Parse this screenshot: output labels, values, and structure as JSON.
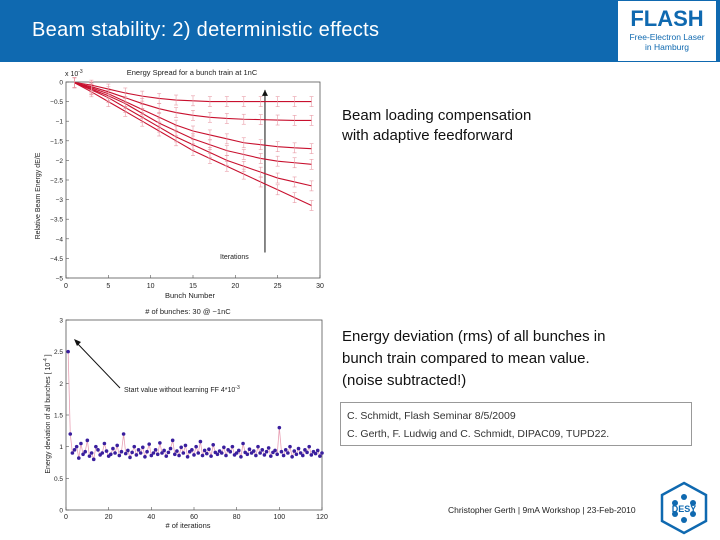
{
  "header": {
    "title": "Beam stability: 2) deterministic effects"
  },
  "logo": {
    "title": "FLASH",
    "subtitle_line1": "Free-Electron Laser",
    "subtitle_line2": "in Hamburg"
  },
  "text_block1": {
    "line1": "Beam loading compensation",
    "line2": "with adaptive feedforward"
  },
  "text_block2": {
    "line1": "Energy deviation (rms) of all bunches in",
    "line2": "bunch train compared to mean value.",
    "line3": "(noise subtracted!)"
  },
  "references": {
    "line1": "C. Schmidt, Flash Seminar 8/5/2009",
    "line2": "C. Gerth, F.  Ludwig and C. Schmidt, DIPAC09, TUPD22."
  },
  "footer": {
    "text": "Christopher Gerth  |  9mA Workshop  |  23-Feb-2010"
  },
  "desy_logo": {
    "text": "DESY"
  },
  "colors": {
    "header_blue": "#0f69b0",
    "curve_red": "#c8102e",
    "point_purple": "#3a1f9e"
  },
  "chart_data": [
    {
      "type": "line",
      "title": "Energy Spread for a bunch train at 1nC",
      "xlabel": "Bunch Number",
      "ylabel": "Relative Beam Energy dE/E",
      "y_multiplier_label": "x 10",
      "y_multiplier_exp": "-3",
      "annotation": "Iterations",
      "xlim": [
        0,
        30
      ],
      "ylim": [
        -5,
        0
      ],
      "x_ticks": [
        "0",
        "5",
        "10",
        "15",
        "20",
        "25",
        "30"
      ],
      "y_ticks": [
        "0",
        "−0.5",
        "−1",
        "−1.5",
        "−2",
        "−2.5",
        "−3",
        "−3.5",
        "−4",
        "−4.5",
        "−5"
      ],
      "x": [
        1,
        3,
        5,
        7,
        9,
        11,
        13,
        15,
        17,
        19,
        21,
        23,
        25,
        27,
        29
      ],
      "series": [
        {
          "values": [
            -0.02,
            -0.25,
            -0.5,
            -0.75,
            -1.0,
            -1.25,
            -1.5,
            -1.75,
            -1.95,
            -2.15,
            -2.35,
            -2.55,
            -2.75,
            -2.95,
            -3.15
          ]
        },
        {
          "values": [
            -0.02,
            -0.2,
            -0.4,
            -0.65,
            -0.9,
            -1.15,
            -1.4,
            -1.6,
            -1.8,
            -2.0,
            -2.15,
            -2.3,
            -2.45,
            -2.55,
            -2.65
          ]
        },
        {
          "values": [
            -0.02,
            -0.18,
            -0.35,
            -0.55,
            -0.8,
            -1.05,
            -1.25,
            -1.45,
            -1.6,
            -1.75,
            -1.85,
            -1.95,
            -2.02,
            -2.06,
            -2.1
          ]
        },
        {
          "values": [
            -0.02,
            -0.15,
            -0.3,
            -0.5,
            -0.7,
            -0.9,
            -1.1,
            -1.25,
            -1.35,
            -1.45,
            -1.55,
            -1.6,
            -1.65,
            -1.68,
            -1.7
          ]
        },
        {
          "values": [
            -0.02,
            -0.12,
            -0.25,
            -0.4,
            -0.55,
            -0.68,
            -0.78,
            -0.85,
            -0.9,
            -0.93,
            -0.95,
            -0.96,
            -0.97,
            -0.98,
            -0.98
          ]
        },
        {
          "values": [
            -0.01,
            -0.08,
            -0.18,
            -0.28,
            -0.36,
            -0.42,
            -0.46,
            -0.48,
            -0.5,
            -0.5,
            -0.5,
            -0.5,
            -0.5,
            -0.5,
            -0.5
          ]
        }
      ]
    },
    {
      "type": "scatter",
      "title": "# of bunches: 30 @ ~1nC",
      "xlabel": "# of iterations",
      "ylabel": "Energy deviation of all bunches [ 10",
      "ylabel_exp": "-4",
      "ylabel_end": " ]",
      "annotation": "Start value without learning FF 4*10",
      "annotation_exp": "-3",
      "xlim": [
        0,
        120
      ],
      "ylim": [
        0,
        3
      ],
      "x_ticks": [
        "0",
        "20",
        "40",
        "60",
        "80",
        "100",
        "120"
      ],
      "y_ticks": [
        "0",
        "0.5",
        "1",
        "1.5",
        "2",
        "2.5",
        "3"
      ],
      "x": [
        1,
        2,
        3,
        4,
        5,
        6,
        7,
        8,
        9,
        10,
        11,
        12,
        13,
        14,
        15,
        16,
        17,
        18,
        19,
        20,
        21,
        22,
        23,
        24,
        25,
        26,
        27,
        28,
        29,
        30,
        31,
        32,
        33,
        34,
        35,
        36,
        37,
        38,
        39,
        40,
        41,
        42,
        43,
        44,
        45,
        46,
        47,
        48,
        49,
        50,
        51,
        52,
        53,
        54,
        55,
        56,
        57,
        58,
        59,
        60,
        61,
        62,
        63,
        64,
        65,
        66,
        67,
        68,
        69,
        70,
        71,
        72,
        73,
        74,
        75,
        76,
        77,
        78,
        79,
        80,
        81,
        82,
        83,
        84,
        85,
        86,
        87,
        88,
        89,
        90,
        91,
        92,
        93,
        94,
        95,
        96,
        97,
        98,
        99,
        100,
        101,
        102,
        103,
        104,
        105,
        106,
        107,
        108,
        109,
        110,
        111,
        112,
        113,
        114,
        115,
        116,
        117,
        118,
        119,
        120
      ],
      "values": [
        2.5,
        1.2,
        0.9,
        0.95,
        1.0,
        0.82,
        1.05,
        0.88,
        0.92,
        1.1,
        0.85,
        0.9,
        0.8,
        1.0,
        0.95,
        0.87,
        0.9,
        1.05,
        0.93,
        0.85,
        0.88,
        0.97,
        0.9,
        1.02,
        0.86,
        0.92,
        1.2,
        0.89,
        0.94,
        0.83,
        0.91,
        1.0,
        0.87,
        0.95,
        0.9,
        0.99,
        0.84,
        0.92,
        1.04,
        0.86,
        0.9,
        0.95,
        0.88,
        1.06,
        0.9,
        0.94,
        0.85,
        0.91,
        0.97,
        1.1,
        0.88,
        0.93,
        0.86,
        0.99,
        0.9,
        1.02,
        0.84,
        0.92,
        0.95,
        0.87,
        1.0,
        0.9,
        1.08,
        0.86,
        0.94,
        0.89,
        0.96,
        0.85,
        1.03,
        0.91,
        0.88,
        0.93,
        0.9,
        0.99,
        0.86,
        0.95,
        0.92,
        1.0,
        0.87,
        0.9,
        0.94,
        0.84,
        1.05,
        0.91,
        0.88,
        0.96,
        0.9,
        0.93,
        0.86,
        1.0,
        0.9,
        0.95,
        0.87,
        0.92,
        0.98,
        0.85,
        0.91,
        0.94,
        0.88,
        1.3,
        0.92,
        0.86,
        0.95,
        0.9,
        1.0,
        0.84,
        0.93,
        0.88,
        0.97,
        0.9,
        0.86,
        0.95,
        0.91,
        1.0,
        0.87,
        0.92,
        0.89,
        0.94,
        0.85,
        0.9
      ]
    }
  ]
}
